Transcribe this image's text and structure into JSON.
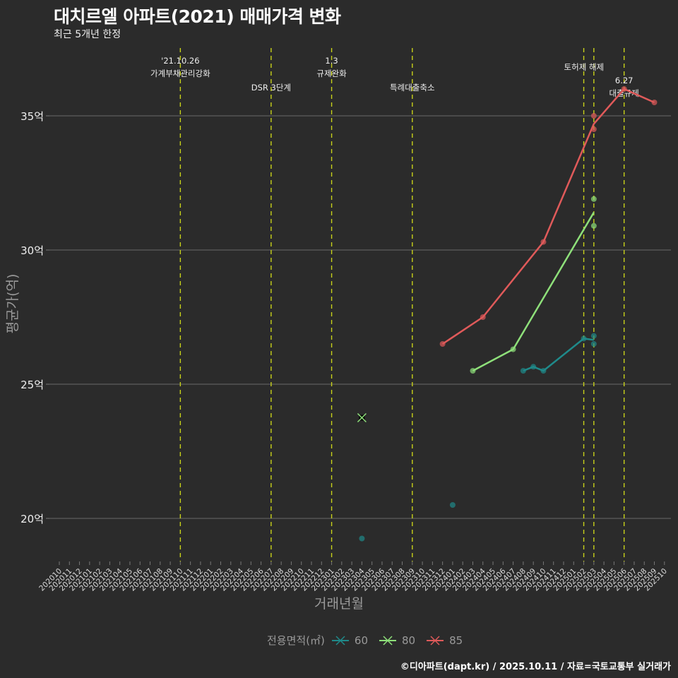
{
  "header": {
    "title": "대치르엘 아파트(2021) 매매가격 변화",
    "subtitle": "최근 5개년 한정"
  },
  "caption": "©디아파트(dapt.kr) / 2025.10.11 / 자료=국토교통부 실거래가",
  "axes": {
    "xlabel": "거래년월",
    "ylabel": "평균가(억)"
  },
  "legend": {
    "title": "전용면적(㎡)",
    "items": [
      {
        "label": "60",
        "color": "#1f8a8a"
      },
      {
        "label": "80",
        "color": "#8ee07a"
      },
      {
        "label": "85",
        "color": "#e05a5a"
      }
    ]
  },
  "chart_data": {
    "type": "line",
    "title": "대치르엘 아파트(2021) 매매가격 변화",
    "subtitle": "최근 5개년 한정",
    "xlabel": "거래년월",
    "ylabel": "평균가(억)",
    "ylim": [
      18.4,
      37.2
    ],
    "yticks": [
      20,
      25,
      30,
      35
    ],
    "ytick_labels": [
      "20억",
      "25억",
      "30억",
      "35억"
    ],
    "grid": "horizontal",
    "legend_position": "bottom",
    "categories": [
      "202010",
      "202011",
      "202012",
      "202101",
      "202102",
      "202103",
      "202104",
      "202105",
      "202106",
      "202107",
      "202108",
      "202109",
      "202110",
      "202111",
      "202112",
      "202201",
      "202202",
      "202203",
      "202204",
      "202205",
      "202206",
      "202207",
      "202208",
      "202209",
      "202210",
      "202211",
      "202212",
      "202301",
      "202302",
      "202303",
      "202304",
      "202305",
      "202306",
      "202307",
      "202308",
      "202309",
      "202310",
      "202311",
      "202312",
      "202401",
      "202402",
      "202403",
      "202404",
      "202405",
      "202406",
      "202407",
      "202408",
      "202409",
      "202410",
      "202411",
      "202412",
      "202501",
      "202502",
      "202503",
      "202504",
      "202505",
      "202506",
      "202507",
      "202508",
      "202509",
      "202510"
    ],
    "series": [
      {
        "name": "60",
        "color": "#1f8a8a",
        "line": [
          [
            "202408",
            25.5
          ],
          [
            "202409",
            25.65
          ],
          [
            "202410",
            25.5
          ],
          [
            "202502",
            26.7
          ],
          [
            "202503",
            26.65
          ]
        ],
        "points": [
          [
            "202304",
            19.25
          ],
          [
            "202401",
            20.5
          ],
          [
            "202408",
            25.5
          ],
          [
            "202409",
            25.65
          ],
          [
            "202410",
            25.5
          ],
          [
            "202502",
            26.7
          ],
          [
            "202503",
            26.8
          ],
          [
            "202503",
            26.5
          ]
        ]
      },
      {
        "name": "80",
        "color": "#8ee07a",
        "line": [
          [
            "202403",
            25.5
          ],
          [
            "202407",
            26.3
          ],
          [
            "202503",
            31.4
          ]
        ],
        "points": [
          [
            "202403",
            25.5
          ],
          [
            "202407",
            26.3
          ],
          [
            "202503",
            31.9
          ],
          [
            "202503",
            30.9
          ]
        ],
        "cross_points": [
          [
            "202304",
            23.75
          ]
        ]
      },
      {
        "name": "85",
        "color": "#e05a5a",
        "line": [
          [
            "202312",
            26.5
          ],
          [
            "202404",
            27.5
          ],
          [
            "202410",
            30.3
          ],
          [
            "202503",
            34.7
          ],
          [
            "202506",
            36.0
          ],
          [
            "202509",
            35.5
          ]
        ],
        "points": [
          [
            "202312",
            26.5
          ],
          [
            "202404",
            27.5
          ],
          [
            "202410",
            30.3
          ],
          [
            "202503",
            35.0
          ],
          [
            "202503",
            34.5
          ],
          [
            "202506",
            36.0
          ],
          [
            "202509",
            35.5
          ]
        ]
      }
    ],
    "annotations": [
      {
        "x": "202110",
        "lines": [
          "'21.10.26",
          "가계부채관리강화"
        ],
        "y": 90
      },
      {
        "x": "202207",
        "lines": [
          "DSR 3단계"
        ],
        "y": 128
      },
      {
        "x": "202301",
        "lines": [
          "1.3",
          "규제완화"
        ],
        "y": 90
      },
      {
        "x": "202309",
        "lines": [
          "특례대출축소"
        ],
        "y": 128
      },
      {
        "x": "202502",
        "lines": [],
        "y": 0
      },
      {
        "x": "202503",
        "lines": [
          "토허제 해제"
        ],
        "y": 99,
        "offset": -14
      },
      {
        "x": "202506",
        "lines": [
          "6.27",
          "대출규제"
        ],
        "y": 118
      }
    ]
  }
}
